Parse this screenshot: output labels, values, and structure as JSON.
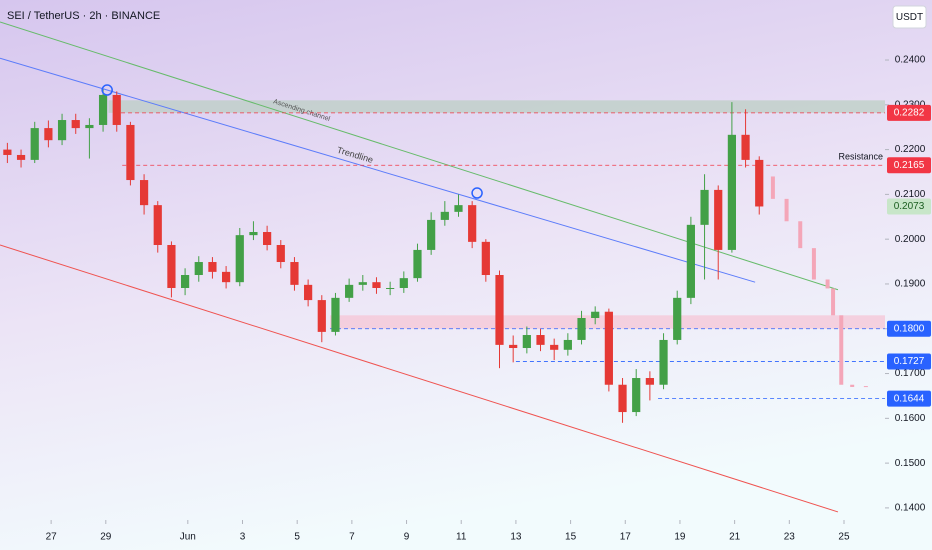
{
  "chart_data": {
    "type": "candlestick",
    "title": "SEI / TetherUS · 2h · BINANCE",
    "currency": "USDT",
    "up_color": "#43a047",
    "down_color": "#e53935",
    "x": [
      25.4,
      25.9,
      26.4,
      26.9,
      27.4,
      27.9,
      28.4,
      28.9,
      29.4,
      29.9,
      30.4,
      30.9,
      31.4,
      31.9,
      32.4,
      32.9,
      33.4,
      33.9,
      34.4,
      34.9,
      35.4,
      35.9,
      36.4,
      36.9,
      37.4,
      37.9,
      38.4,
      38.9,
      39.4,
      39.9,
      40.4,
      40.9,
      41.4,
      41.9,
      42.4,
      42.9,
      43.4,
      43.9,
      44.4,
      44.9,
      45.4,
      45.9,
      46.4,
      46.9,
      47.4,
      47.9,
      48.4,
      48.9,
      49.4,
      49.9,
      50.4,
      50.9,
      51.4,
      51.9,
      52.4,
      52.9
    ],
    "open": [
      0.22,
      0.2188,
      0.2177,
      0.2248,
      0.2221,
      0.2266,
      0.2248,
      0.2255,
      0.2322,
      0.2255,
      0.2132,
      0.2076,
      0.1987,
      0.1891,
      0.192,
      0.1949,
      0.1927,
      0.1904,
      0.2009,
      0.2016,
      0.1987,
      0.1949,
      0.1898,
      0.1864,
      0.1793,
      0.1869,
      0.1898,
      0.1904,
      0.1891,
      0.1891,
      0.1913,
      0.1976,
      0.2043,
      0.2061,
      0.2076,
      0.1994,
      0.192,
      0.1764,
      0.1757,
      0.1786,
      0.1764,
      0.1753,
      0.1775,
      0.1824,
      0.1838,
      0.1675,
      0.1614,
      0.169,
      0.1675,
      0.1775,
      0.1869,
      0.2032,
      0.211,
      0.1976,
      0.2233,
      0.2177
    ],
    "high": [
      0.2215,
      0.22,
      0.2262,
      0.2265,
      0.228,
      0.228,
      0.227,
      0.2335,
      0.233,
      0.2262,
      0.2145,
      0.2085,
      0.1995,
      0.1935,
      0.1962,
      0.196,
      0.194,
      0.2025,
      0.204,
      0.203,
      0.1998,
      0.196,
      0.191,
      0.1875,
      0.188,
      0.1912,
      0.192,
      0.1915,
      0.1905,
      0.1928,
      0.199,
      0.206,
      0.2085,
      0.21,
      0.2085,
      0.2,
      0.193,
      0.1785,
      0.1805,
      0.18,
      0.1778,
      0.179,
      0.184,
      0.185,
      0.1845,
      0.169,
      0.171,
      0.1705,
      0.179,
      0.1885,
      0.205,
      0.2145,
      0.212,
      0.2306,
      0.229,
      0.2185
    ],
    "low": [
      0.217,
      0.216,
      0.217,
      0.2205,
      0.221,
      0.2235,
      0.218,
      0.224,
      0.224,
      0.212,
      0.2055,
      0.197,
      0.187,
      0.1875,
      0.1905,
      0.1912,
      0.189,
      0.1895,
      0.1998,
      0.1975,
      0.1935,
      0.1885,
      0.185,
      0.177,
      0.1785,
      0.186,
      0.1885,
      0.1878,
      0.1875,
      0.188,
      0.1905,
      0.1965,
      0.203,
      0.205,
      0.198,
      0.1905,
      0.1712,
      0.1725,
      0.1745,
      0.175,
      0.173,
      0.174,
      0.1765,
      0.181,
      0.166,
      0.159,
      0.1605,
      0.164,
      0.1665,
      0.1765,
      0.1855,
      0.191,
      0.191,
      0.197,
      0.216,
      0.2055
    ],
    "close": [
      0.2188,
      0.2177,
      0.2248,
      0.2221,
      0.2266,
      0.2248,
      0.2255,
      0.2322,
      0.2255,
      0.2132,
      0.2076,
      0.1987,
      0.1891,
      0.192,
      0.1949,
      0.1927,
      0.1904,
      0.2009,
      0.2016,
      0.1987,
      0.1949,
      0.1898,
      0.1864,
      0.1793,
      0.1869,
      0.1898,
      0.1904,
      0.1891,
      0.1891,
      0.1913,
      0.1976,
      0.2043,
      0.2061,
      0.2076,
      0.1994,
      0.192,
      0.1764,
      0.1757,
      0.1786,
      0.1764,
      0.1753,
      0.1775,
      0.1824,
      0.1838,
      0.1675,
      0.1614,
      0.169,
      0.1675,
      0.1775,
      0.1869,
      0.2032,
      0.211,
      0.1976,
      0.2233,
      0.2177,
      0.2073
    ],
    "forecast": {
      "color": "#f4a6b8",
      "x": [
        53.4,
        53.9,
        54.4,
        54.9,
        55.4,
        55.6,
        55.9,
        56.3,
        56.8
      ],
      "open": [
        0.214,
        0.209,
        0.204,
        0.198,
        0.191,
        0.189,
        0.183,
        0.1675,
        0.167
      ],
      "close": [
        0.209,
        0.204,
        0.198,
        0.191,
        0.189,
        0.183,
        0.1675,
        0.167,
        0.1672
      ]
    },
    "last_price": {
      "value": 0.2073,
      "label": "0.2073"
    },
    "xlim": [
      25.13,
      57.5
    ],
    "xticks": [
      27,
      29,
      {
        "value": 32,
        "label": "Jun"
      },
      {
        "value": 34,
        "label": "3"
      },
      {
        "value": 36,
        "label": "5"
      },
      {
        "value": 38,
        "label": "7"
      },
      {
        "value": 40,
        "label": "9"
      },
      {
        "value": 42,
        "label": "11"
      },
      {
        "value": 44,
        "label": "13"
      },
      {
        "value": 46,
        "label": "15"
      },
      {
        "value": 48,
        "label": "17"
      },
      {
        "value": 50,
        "label": "19"
      },
      {
        "value": 52,
        "label": "21"
      },
      {
        "value": 54,
        "label": "23"
      },
      {
        "value": 56,
        "label": "25"
      }
    ],
    "ylim": [
      0.1373,
      0.2534
    ],
    "yticks": [
      {
        "value": 0.14,
        "label": "0.1400"
      },
      {
        "value": 0.15,
        "label": "0.1500"
      },
      {
        "value": 0.16,
        "label": "0.1600"
      },
      {
        "value": 0.17,
        "label": "0.1700"
      },
      {
        "value": 0.18,
        "label": "0.1800"
      },
      {
        "value": 0.19,
        "label": "0.1900"
      },
      {
        "value": 0.2,
        "label": "0.2000"
      },
      {
        "value": 0.21,
        "label": "0.2100"
      },
      {
        "value": 0.22,
        "label": "0.2200"
      },
      {
        "value": 0.23,
        "label": "0.2300"
      },
      {
        "value": 0.24,
        "label": "0.2400"
      }
    ],
    "zones": [
      {
        "low": 0.2282,
        "high": 0.231,
        "from": 29.1,
        "color": "#bccfc4"
      },
      {
        "low": 0.18,
        "high": 0.183,
        "from": 37.2,
        "color": "#f6c6d6"
      }
    ],
    "levels": [
      {
        "value": 0.2282,
        "label": "0.2282",
        "color": "#f23645",
        "from": 29.3
      },
      {
        "value": 0.2165,
        "label": "0.2165",
        "color": "#f23645",
        "from": 29.6,
        "note": "Resistance"
      },
      {
        "value": 0.18,
        "label": "0.1800",
        "color": "#2962ff",
        "from": 37.2
      },
      {
        "value": 0.1727,
        "label": "0.1727",
        "color": "#2962ff",
        "from": 44
      },
      {
        "value": 0.1644,
        "label": "0.1644",
        "color": "#2962ff",
        "from": 49.2
      }
    ],
    "lines": [
      {
        "label": "Ascending channel",
        "color": "#66bb6a",
        "x": [
          25.13,
          55.78
        ],
        "y": [
          0.2485,
          0.1887
        ]
      },
      {
        "label": "Trendline",
        "color": "#5c7cfa",
        "x": [
          25.13,
          52.75
        ],
        "y": [
          0.2404,
          0.1904
        ]
      },
      {
        "color": "#ef5350",
        "x": [
          25.13,
          55.78
        ],
        "y": [
          0.1987,
          0.1391
        ]
      }
    ],
    "markers": {
      "color": "#2962ff",
      "x": [
        29.05,
        42.58
      ],
      "y": [
        0.2333,
        0.2103
      ]
    }
  }
}
